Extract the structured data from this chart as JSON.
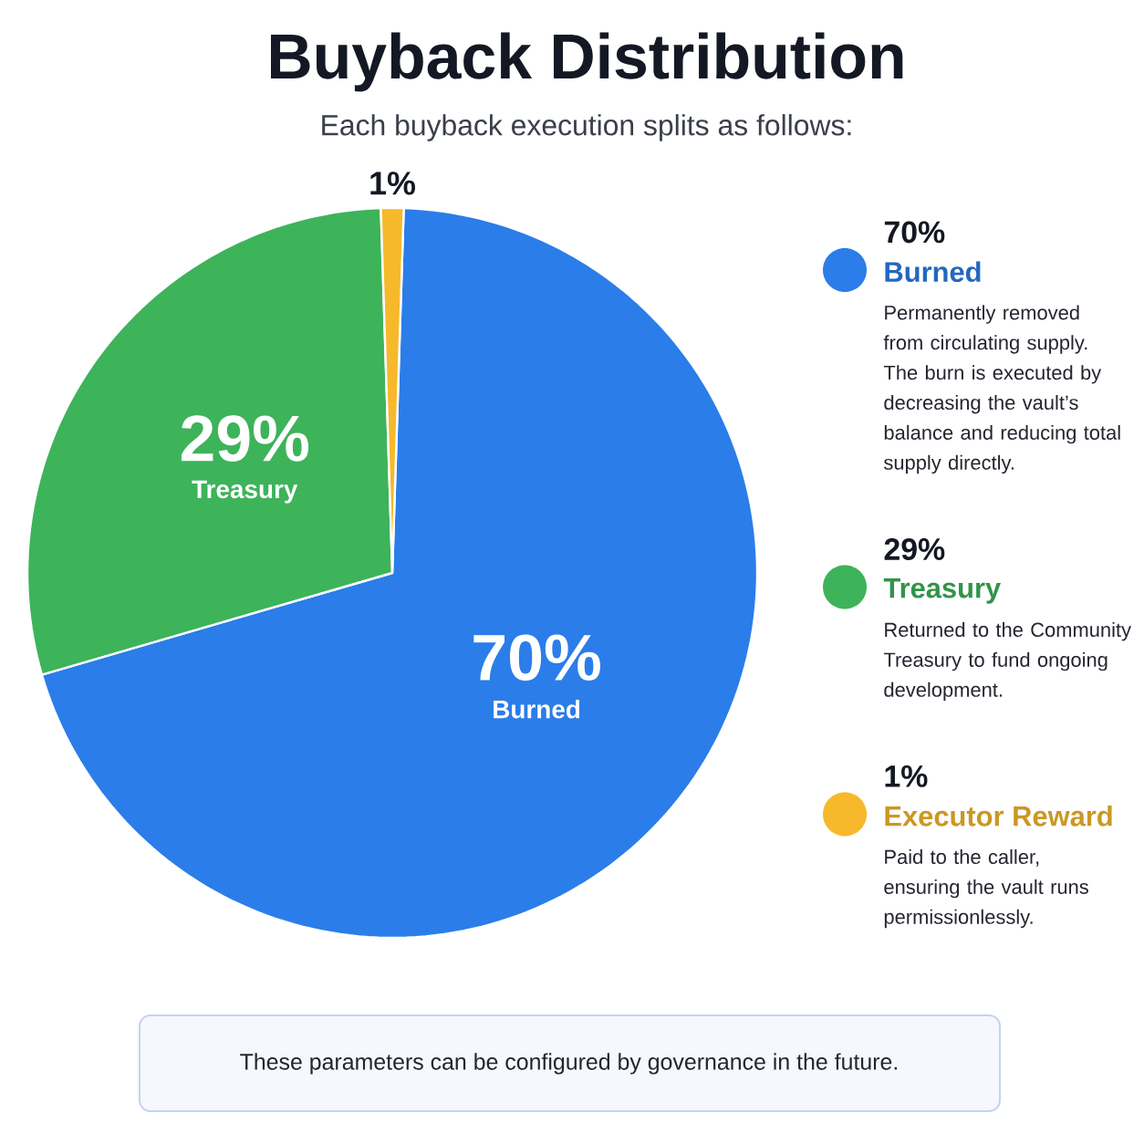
{
  "chart_data": {
    "type": "pie",
    "title": "Buyback Distribution",
    "subtitle": "Each buyback execution splits as follows:",
    "categories": [
      "Burned",
      "Treasury",
      "Executor Reward"
    ],
    "values": [
      70,
      29,
      1
    ],
    "colors": [
      "#2b7de9",
      "#3db35a",
      "#f6b92b"
    ],
    "value_labels": [
      "70%",
      "29%",
      "1%"
    ],
    "legend": "right",
    "annotations": [
      "Permanently removed from circulating supply. The burn is executed by decreasing the vault’s balance and reducing total supply directly.",
      "Returned to the Community Treasury to fund ongoing development.",
      "Paid to the caller, ensuring the vault runs permissionlessly.",
      "These parameters can be configured by governance in the future."
    ]
  }
}
